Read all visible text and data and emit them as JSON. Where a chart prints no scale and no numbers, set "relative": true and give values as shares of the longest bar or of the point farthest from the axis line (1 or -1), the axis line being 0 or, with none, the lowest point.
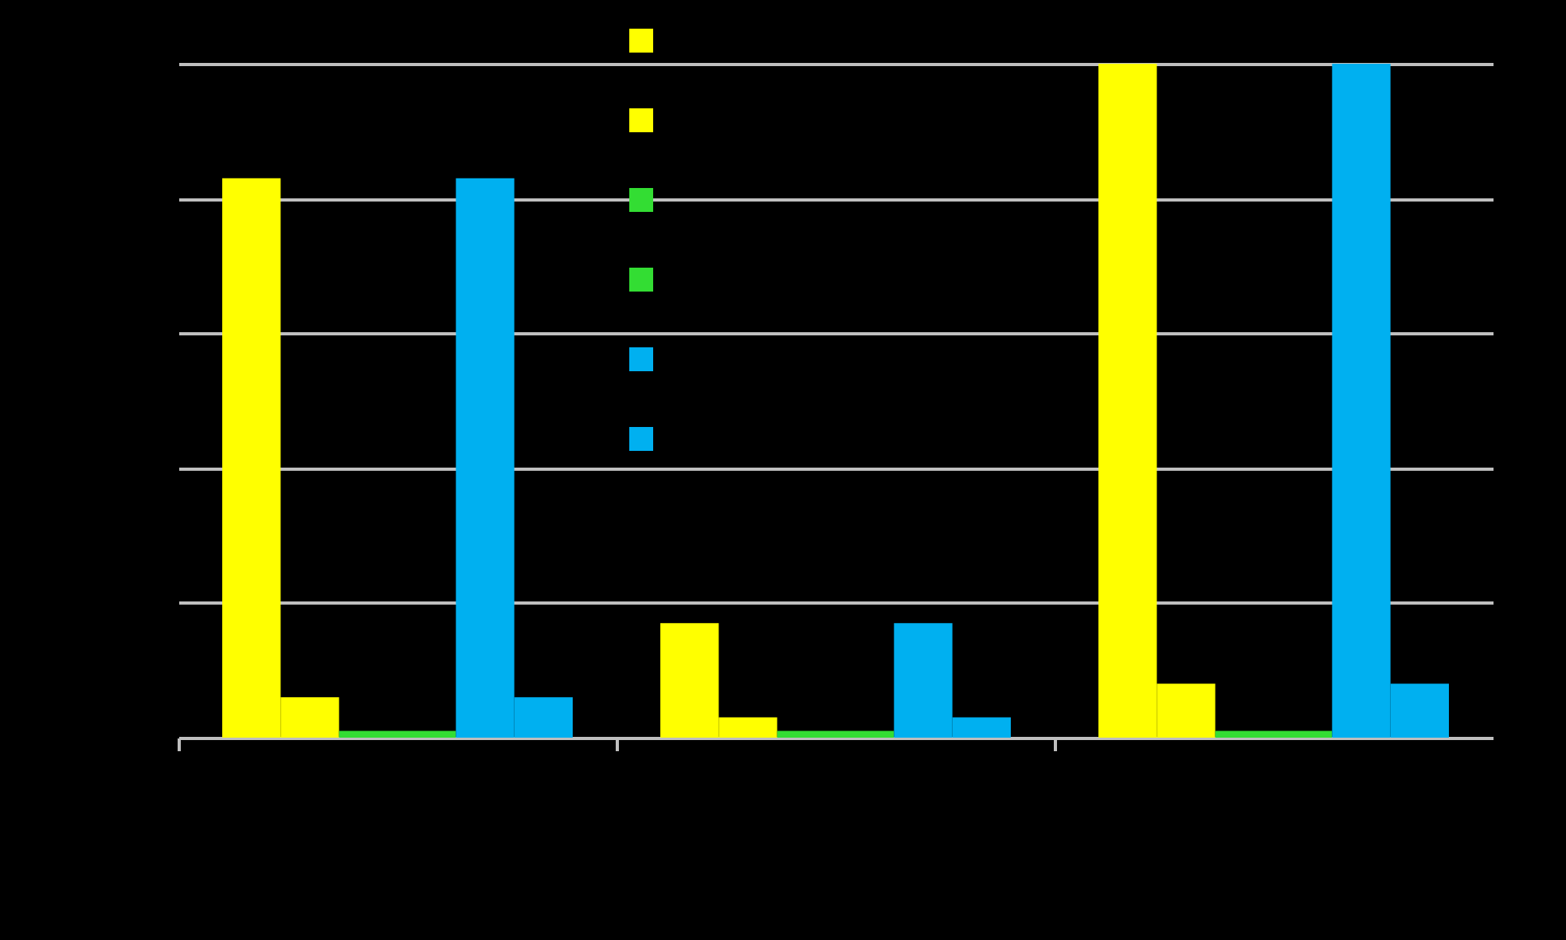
{
  "chart_data": {
    "type": "bar",
    "relative": true,
    "categories": [
      null,
      null,
      null
    ],
    "series": [
      {
        "color": "#ffff00",
        "values": [
          0.83,
          0.17,
          1
        ]
      },
      {
        "color": "#ffff00",
        "values": [
          0.06,
          0.03,
          0.08
        ]
      },
      {
        "color": "#33dd33",
        "values": [
          0.01,
          0.01,
          0.01
        ]
      },
      {
        "color": "#33dd33",
        "values": [
          0.01,
          0.01,
          0.01
        ]
      },
      {
        "color": "#00b0f0",
        "values": [
          0.83,
          0.17,
          1
        ]
      },
      {
        "color": "#00b0f0",
        "values": [
          0.06,
          0.03,
          0.08
        ]
      }
    ],
    "grid": "y"
  }
}
